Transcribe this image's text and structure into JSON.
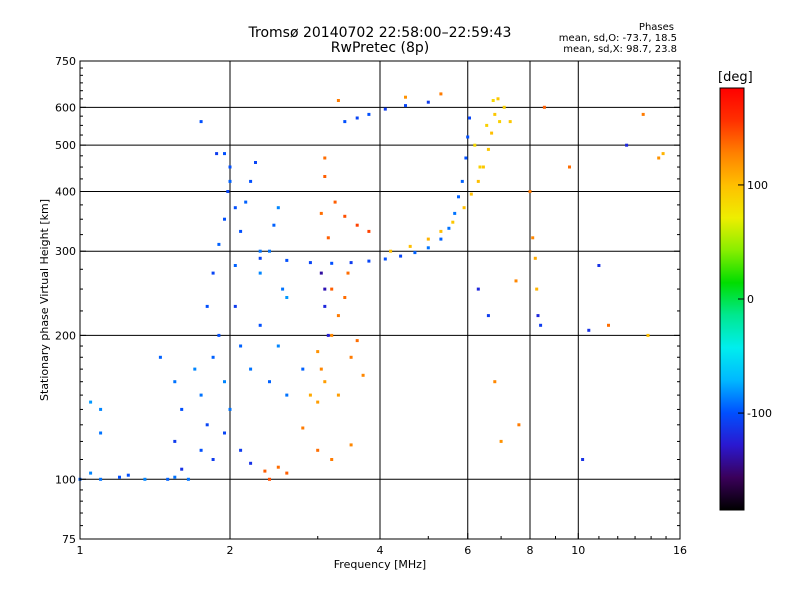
{
  "header": {
    "title_line1": "Tromsø 20140702 22:58:00–22:59:43",
    "title_line2": "RwPretec (8p)"
  },
  "stats": {
    "heading": "Phases",
    "line_o": "mean, sd,O:  -73.7, 18.5",
    "line_x": "mean, sd,X:  98.7, 23.8"
  },
  "colorbar": {
    "unit_label": "[deg]",
    "ticks": [
      {
        "value": 100,
        "label": "100"
      },
      {
        "value": 0,
        "label": "0"
      },
      {
        "value": -100,
        "label": "-100"
      }
    ],
    "range": [
      -185,
      185
    ],
    "palette": [
      "#000000",
      "#3a005a",
      "#2a18d0",
      "#0050ff",
      "#00b8ff",
      "#00eeee",
      "#00e890",
      "#00dd00",
      "#88ee00",
      "#eeee00",
      "#ffc000",
      "#ff8000",
      "#ff3000",
      "#ff0000"
    ]
  },
  "chart_data": {
    "type": "scatter",
    "title": "Tromsø 20140702 22:58:00–22:59:43",
    "subtitle": "RwPretec (8p)",
    "xlabel": "Frequency [MHz]",
    "ylabel": "Stationary phase Virtual Height [km]",
    "x_scale": "log",
    "y_scale": "log",
    "xlim": [
      1,
      16
    ],
    "ylim": [
      75,
      750
    ],
    "x_ticks": [
      {
        "value": 1,
        "label": "1"
      },
      {
        "value": 2,
        "label": "2"
      },
      {
        "value": 4,
        "label": "4"
      },
      {
        "value": 6,
        "label": "6"
      },
      {
        "value": 8,
        "label": "8"
      },
      {
        "value": 10,
        "label": "10"
      },
      {
        "value": 16,
        "label": "16"
      }
    ],
    "x_grid": [
      2,
      4,
      6,
      8,
      10
    ],
    "y_ticks": [
      {
        "value": 75,
        "label": "75"
      },
      {
        "value": 100,
        "label": "100"
      },
      {
        "value": 200,
        "label": "200"
      },
      {
        "value": 300,
        "label": "300"
      },
      {
        "value": 400,
        "label": "400"
      },
      {
        "value": 500,
        "label": "500"
      },
      {
        "value": 600,
        "label": "600"
      },
      {
        "value": 750,
        "label": "750"
      }
    ],
    "y_grid": [
      100,
      200,
      300,
      400,
      500,
      600
    ],
    "color_metric": "phase (deg)",
    "grid": true,
    "points_approx": [
      [
        1.0,
        100,
        -95
      ],
      [
        1.1,
        100,
        -90
      ],
      [
        1.2,
        101,
        -100
      ],
      [
        1.35,
        100,
        -85
      ],
      [
        1.5,
        100,
        -95
      ],
      [
        1.65,
        100,
        -90
      ],
      [
        1.05,
        103,
        -85
      ],
      [
        1.25,
        102,
        -100
      ],
      [
        1.55,
        101,
        -90
      ],
      [
        1.05,
        145,
        -80
      ],
      [
        1.1,
        140,
        -85
      ],
      [
        1.1,
        125,
        -90
      ],
      [
        1.45,
        180,
        -95
      ],
      [
        1.55,
        160,
        -90
      ],
      [
        1.6,
        140,
        -100
      ],
      [
        1.7,
        170,
        -85
      ],
      [
        1.75,
        150,
        -90
      ],
      [
        1.8,
        130,
        -105
      ],
      [
        1.85,
        180,
        -95
      ],
      [
        1.9,
        200,
        -100
      ],
      [
        1.95,
        160,
        -85
      ],
      [
        2.0,
        140,
        -90
      ],
      [
        2.05,
        230,
        -110
      ],
      [
        2.1,
        190,
        -95
      ],
      [
        2.2,
        170,
        -90
      ],
      [
        2.3,
        210,
        -100
      ],
      [
        2.4,
        160,
        -95
      ],
      [
        2.5,
        190,
        -85
      ],
      [
        2.6,
        150,
        -90
      ],
      [
        2.8,
        170,
        -95
      ],
      [
        1.55,
        120,
        -110
      ],
      [
        1.6,
        105,
        -115
      ],
      [
        1.75,
        115,
        -100
      ],
      [
        1.85,
        110,
        -110
      ],
      [
        1.95,
        125,
        -105
      ],
      [
        2.1,
        115,
        -110
      ],
      [
        2.2,
        108,
        -115
      ],
      [
        1.8,
        230,
        -100
      ],
      [
        1.85,
        270,
        -105
      ],
      [
        1.9,
        310,
        -95
      ],
      [
        1.95,
        350,
        -100
      ],
      [
        1.98,
        400,
        -105
      ],
      [
        2.0,
        450,
        -100
      ],
      [
        1.88,
        480,
        -110
      ],
      [
        2.05,
        280,
        -95
      ],
      [
        2.1,
        330,
        -100
      ],
      [
        2.15,
        380,
        -95
      ],
      [
        2.2,
        420,
        -100
      ],
      [
        2.25,
        460,
        -105
      ],
      [
        2.3,
        300,
        -90
      ],
      [
        2.3,
        270,
        -85
      ],
      [
        2.4,
        300,
        -90
      ],
      [
        2.45,
        340,
        -95
      ],
      [
        2.5,
        370,
        -85
      ],
      [
        2.55,
        250,
        -90
      ],
      [
        2.6,
        240,
        -80
      ],
      [
        1.75,
        560,
        -100
      ],
      [
        2.3,
        290,
        -105
      ],
      [
        2.6,
        287,
        -100
      ],
      [
        2.9,
        284,
        -105
      ],
      [
        3.2,
        283,
        -100
      ],
      [
        3.5,
        284,
        -110
      ],
      [
        3.8,
        286,
        -105
      ],
      [
        4.1,
        289,
        -100
      ],
      [
        4.4,
        293,
        -105
      ],
      [
        4.7,
        298,
        -95
      ],
      [
        5.0,
        305,
        -90
      ],
      [
        5.3,
        318,
        -95
      ],
      [
        5.5,
        335,
        -90
      ],
      [
        5.65,
        360,
        -90
      ],
      [
        5.75,
        390,
        -95
      ],
      [
        5.85,
        420,
        -95
      ],
      [
        5.95,
        470,
        -100
      ],
      [
        6.0,
        520,
        -100
      ],
      [
        6.05,
        570,
        -105
      ],
      [
        4.2,
        300,
        100
      ],
      [
        4.6,
        307,
        100
      ],
      [
        5.0,
        318,
        105
      ],
      [
        5.3,
        330,
        100
      ],
      [
        5.6,
        345,
        95
      ],
      [
        5.9,
        370,
        100
      ],
      [
        6.1,
        395,
        100
      ],
      [
        6.3,
        420,
        100
      ],
      [
        6.45,
        450,
        95
      ],
      [
        6.6,
        490,
        95
      ],
      [
        6.7,
        530,
        100
      ],
      [
        6.8,
        580,
        95
      ],
      [
        6.9,
        625,
        95
      ],
      [
        6.2,
        500,
        85
      ],
      [
        6.35,
        450,
        90
      ],
      [
        6.55,
        550,
        90
      ],
      [
        6.75,
        620,
        85
      ],
      [
        6.95,
        560,
        90
      ],
      [
        7.1,
        600,
        90
      ],
      [
        7.3,
        560,
        95
      ],
      [
        3.1,
        470,
        135
      ],
      [
        3.1,
        430,
        140
      ],
      [
        3.25,
        380,
        140
      ],
      [
        3.4,
        355,
        145
      ],
      [
        3.6,
        340,
        150
      ],
      [
        3.8,
        330,
        150
      ],
      [
        3.15,
        320,
        140
      ],
      [
        3.05,
        360,
        135
      ],
      [
        3.0,
        185,
        120
      ],
      [
        3.05,
        170,
        125
      ],
      [
        3.1,
        160,
        115
      ],
      [
        3.2,
        200,
        125
      ],
      [
        3.3,
        220,
        130
      ],
      [
        3.4,
        240,
        135
      ],
      [
        3.5,
        180,
        130
      ],
      [
        3.6,
        195,
        135
      ],
      [
        3.7,
        165,
        125
      ],
      [
        3.3,
        150,
        115
      ],
      [
        3.2,
        250,
        140
      ],
      [
        3.45,
        270,
        135
      ],
      [
        2.9,
        150,
        110
      ],
      [
        3.0,
        145,
        115
      ],
      [
        3.05,
        270,
        -140
      ],
      [
        3.1,
        250,
        -135
      ],
      [
        3.1,
        230,
        -120
      ],
      [
        3.15,
        200,
        -125
      ],
      [
        2.35,
        104,
        140
      ],
      [
        2.4,
        100,
        145
      ],
      [
        2.5,
        106,
        135
      ],
      [
        2.6,
        103,
        140
      ],
      [
        2.8,
        128,
        130
      ],
      [
        3.0,
        115,
        135
      ],
      [
        3.2,
        110,
        130
      ],
      [
        3.5,
        118,
        125
      ],
      [
        3.4,
        560,
        -100
      ],
      [
        3.6,
        570,
        -105
      ],
      [
        3.8,
        580,
        -100
      ],
      [
        4.1,
        595,
        -110
      ],
      [
        4.5,
        605,
        -105
      ],
      [
        5.0,
        615,
        -110
      ],
      [
        3.3,
        620,
        130
      ],
      [
        4.5,
        630,
        120
      ],
      [
        5.3,
        640,
        130
      ],
      [
        2.0,
        420,
        -95
      ],
      [
        2.05,
        370,
        -100
      ],
      [
        1.95,
        480,
        -100
      ],
      [
        8.0,
        400,
        130
      ],
      [
        8.1,
        320,
        125
      ],
      [
        8.2,
        290,
        110
      ],
      [
        8.25,
        250,
        105
      ],
      [
        8.3,
        220,
        -120
      ],
      [
        8.4,
        210,
        -110
      ],
      [
        8.55,
        600,
        140
      ],
      [
        9.6,
        450,
        135
      ],
      [
        10.5,
        205,
        -115
      ],
      [
        11.0,
        280,
        -115
      ],
      [
        11.5,
        210,
        135
      ],
      [
        12.5,
        500,
        -120
      ],
      [
        13.5,
        580,
        130
      ],
      [
        13.8,
        200,
        100
      ],
      [
        14.5,
        470,
        120
      ],
      [
        14.8,
        480,
        105
      ],
      [
        6.3,
        250,
        -120
      ],
      [
        6.6,
        220,
        -110
      ],
      [
        6.8,
        160,
        125
      ],
      [
        7.0,
        120,
        120
      ],
      [
        7.5,
        260,
        125
      ],
      [
        7.6,
        130,
        130
      ],
      [
        10.2,
        110,
        -115
      ]
    ]
  }
}
